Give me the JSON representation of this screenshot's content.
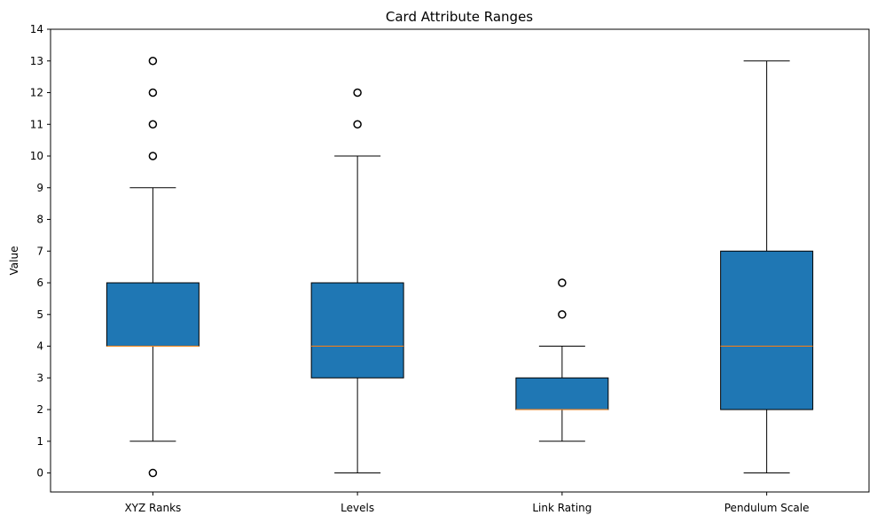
{
  "chart_data": {
    "type": "boxplot",
    "title": "Card Attribute Ranges",
    "xlabel": "",
    "ylabel": "Value",
    "ylim": [
      -0.6,
      14
    ],
    "yticks": [
      0,
      1,
      2,
      3,
      4,
      5,
      6,
      7,
      8,
      9,
      10,
      11,
      12,
      13,
      14
    ],
    "grid": false,
    "categories": [
      "XYZ Ranks",
      "Levels",
      "Link Rating",
      "Pendulum Scale"
    ],
    "boxes": [
      {
        "category": "XYZ Ranks",
        "whisker_low": 1,
        "q1": 4,
        "median": 4,
        "q3": 6,
        "whisker_high": 9,
        "outliers": [
          0,
          10,
          11,
          12,
          13
        ]
      },
      {
        "category": "Levels",
        "whisker_low": 0,
        "q1": 3,
        "median": 4,
        "q3": 6,
        "whisker_high": 10,
        "outliers": [
          11,
          12
        ]
      },
      {
        "category": "Link Rating",
        "whisker_low": 1,
        "q1": 2,
        "median": 2,
        "q3": 3,
        "whisker_high": 4,
        "outliers": [
          5,
          6
        ]
      },
      {
        "category": "Pendulum Scale",
        "whisker_low": 0,
        "q1": 2,
        "median": 4,
        "q3": 7,
        "whisker_high": 13,
        "outliers": []
      }
    ],
    "colors": {
      "box_fill": "#1f77b4",
      "median": "#ff7f0e",
      "line": "#000000"
    }
  }
}
